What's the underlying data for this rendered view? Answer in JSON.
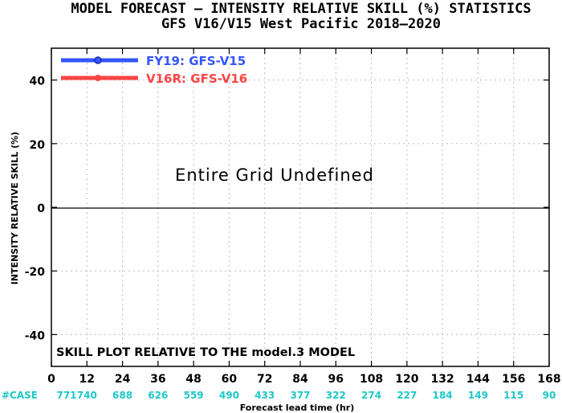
{
  "colors": {
    "v15": "#3355ff",
    "v16": "#ff4444",
    "cases": "#1ec8c8",
    "grid": "#bbbbbb",
    "text": "#000000"
  },
  "chart_data": {
    "type": "line",
    "title": "MODEL FORECAST — INTENSITY RELATIVE SKILL (%) STATISTICS",
    "subtitle": "GFS V16/V15 West Pacific 2018—2020",
    "xlabel": "Forecast lead time (hr)",
    "ylabel": "INTENSITY RELATIVE SKILL (%)",
    "xlim": [
      0,
      168
    ],
    "ylim": [
      -50,
      50
    ],
    "x_ticks": [
      0,
      12,
      24,
      36,
      48,
      60,
      72,
      84,
      96,
      108,
      120,
      132,
      144,
      156,
      168
    ],
    "y_ticks": [
      40,
      20,
      0,
      -20,
      -40
    ],
    "grid": true,
    "legend_position": "top-left",
    "series": [
      {
        "name": "FY19: GFS-V15",
        "color_key": "v15",
        "marker": "open-circle",
        "values": []
      },
      {
        "name": "V16R: GFS-V16",
        "color_key": "v16",
        "marker": "filled-circle",
        "values": []
      }
    ],
    "annotations": {
      "undefined": "Entire Grid Undefined",
      "reference": "SKILL PLOT RELATIVE TO THE model.3 MODEL"
    },
    "case_label": "#CASE",
    "case_counts": [
      "771",
      "740",
      "688",
      "626",
      "559",
      "490",
      "433",
      "377",
      "322",
      "274",
      "227",
      "184",
      "149",
      "115",
      "90"
    ]
  }
}
